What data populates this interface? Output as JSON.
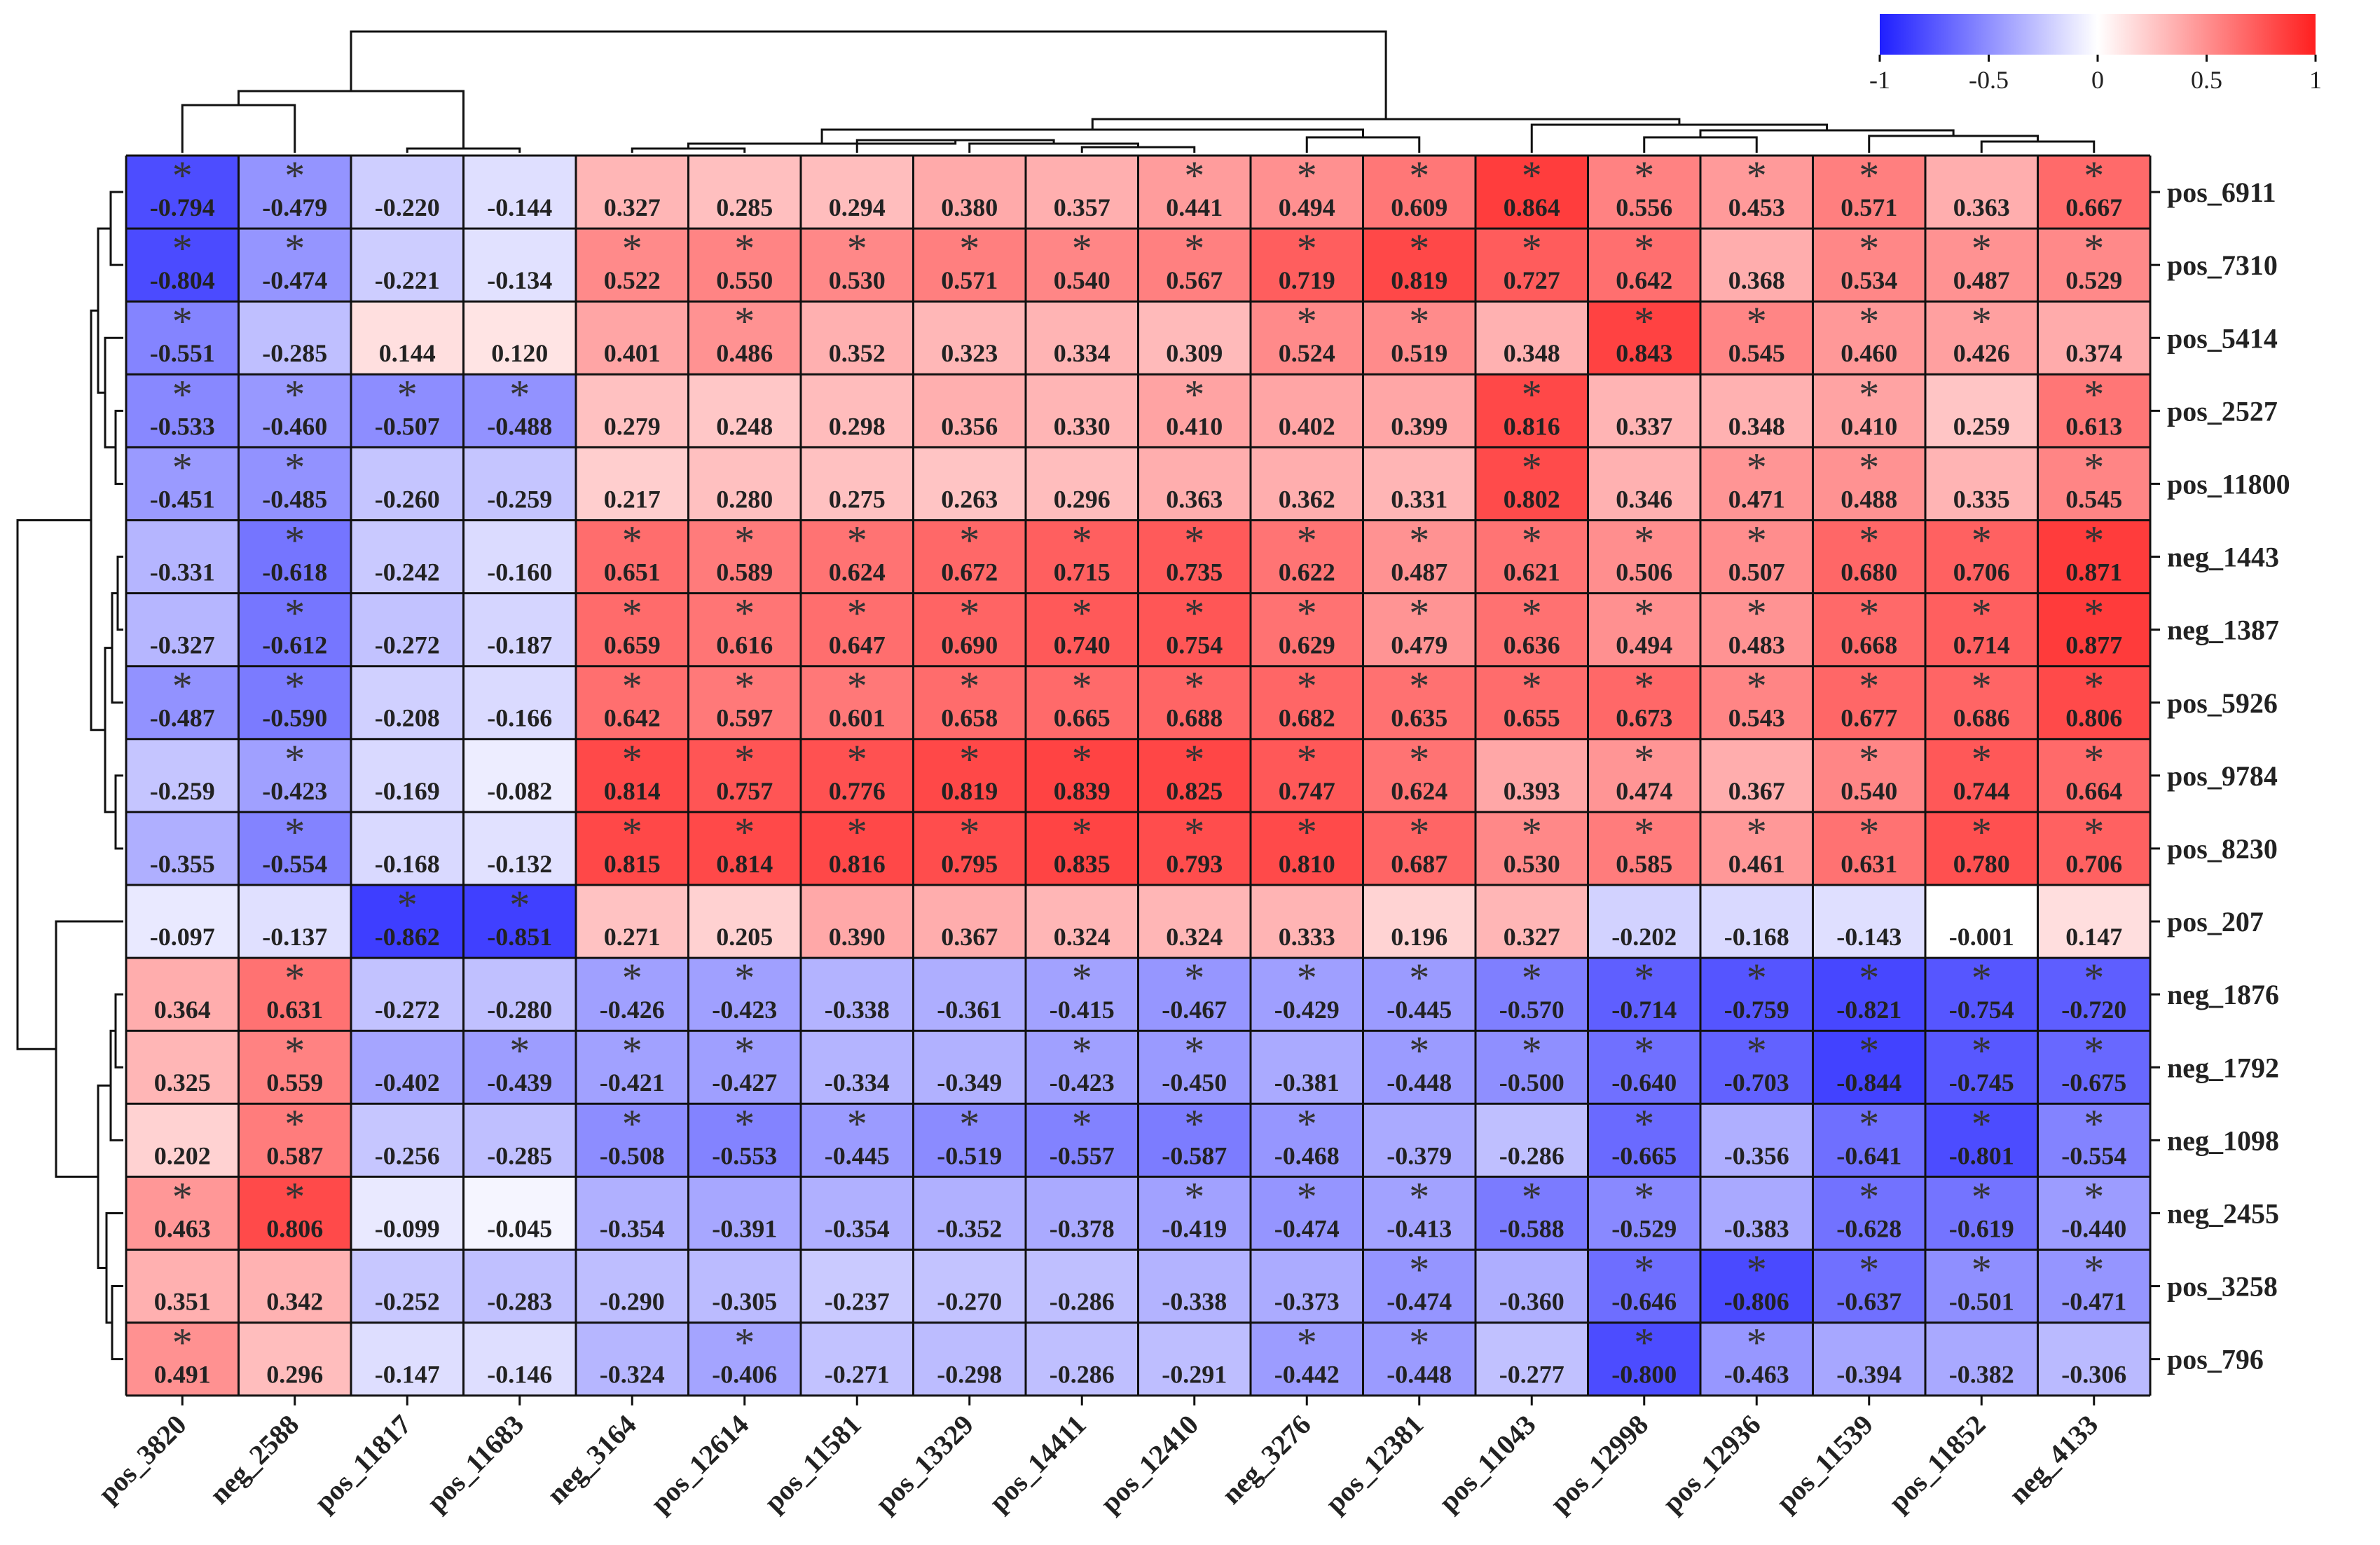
{
  "chart_data": {
    "type": "heatmap",
    "title": "",
    "columns": [
      "pos_3820",
      "neg_2588",
      "pos_11817",
      "pos_11683",
      "neg_3164",
      "pos_12614",
      "pos_11581",
      "pos_13329",
      "pos_14411",
      "pos_12410",
      "neg_3276",
      "pos_12381",
      "pos_11043",
      "pos_12998",
      "pos_12936",
      "pos_11539",
      "pos_11852",
      "neg_4133"
    ],
    "rows": [
      "pos_6911",
      "pos_7310",
      "pos_5414",
      "pos_2527",
      "pos_11800",
      "neg_1443",
      "neg_1387",
      "pos_5926",
      "pos_9784",
      "pos_8230",
      "pos_207",
      "neg_1876",
      "neg_1792",
      "neg_1098",
      "neg_2455",
      "pos_3258",
      "pos_796"
    ],
    "values": [
      [
        -0.794,
        -0.479,
        -0.22,
        -0.144,
        0.327,
        0.285,
        0.294,
        0.38,
        0.357,
        0.441,
        0.494,
        0.609,
        0.864,
        0.556,
        0.453,
        0.571,
        0.363,
        0.667
      ],
      [
        -0.804,
        -0.474,
        -0.221,
        -0.134,
        0.522,
        0.55,
        0.53,
        0.571,
        0.54,
        0.567,
        0.719,
        0.819,
        0.727,
        0.642,
        0.368,
        0.534,
        0.487,
        0.529
      ],
      [
        -0.551,
        -0.285,
        0.144,
        0.12,
        0.401,
        0.486,
        0.352,
        0.323,
        0.334,
        0.309,
        0.524,
        0.519,
        0.348,
        0.843,
        0.545,
        0.46,
        0.426,
        0.374
      ],
      [
        -0.533,
        -0.46,
        -0.507,
        -0.488,
        0.279,
        0.248,
        0.298,
        0.356,
        0.33,
        0.41,
        0.402,
        0.399,
        0.816,
        0.337,
        0.348,
        0.41,
        0.259,
        0.613
      ],
      [
        -0.451,
        -0.485,
        -0.26,
        -0.259,
        0.217,
        0.28,
        0.275,
        0.263,
        0.296,
        0.363,
        0.362,
        0.331,
        0.802,
        0.346,
        0.471,
        0.488,
        0.335,
        0.545
      ],
      [
        -0.331,
        -0.618,
        -0.242,
        -0.16,
        0.651,
        0.589,
        0.624,
        0.672,
        0.715,
        0.735,
        0.622,
        0.487,
        0.621,
        0.506,
        0.507,
        0.68,
        0.706,
        0.871
      ],
      [
        -0.327,
        -0.612,
        -0.272,
        -0.187,
        0.659,
        0.616,
        0.647,
        0.69,
        0.74,
        0.754,
        0.629,
        0.479,
        0.636,
        0.494,
        0.483,
        0.668,
        0.714,
        0.877
      ],
      [
        -0.487,
        -0.59,
        -0.208,
        -0.166,
        0.642,
        0.597,
        0.601,
        0.658,
        0.665,
        0.688,
        0.682,
        0.635,
        0.655,
        0.673,
        0.543,
        0.677,
        0.686,
        0.806
      ],
      [
        -0.259,
        -0.423,
        -0.169,
        -0.082,
        0.814,
        0.757,
        0.776,
        0.819,
        0.839,
        0.825,
        0.747,
        0.624,
        0.393,
        0.474,
        0.367,
        0.54,
        0.744,
        0.664
      ],
      [
        -0.355,
        -0.554,
        -0.168,
        -0.132,
        0.815,
        0.814,
        0.816,
        0.795,
        0.835,
        0.793,
        0.81,
        0.687,
        0.53,
        0.585,
        0.461,
        0.631,
        0.78,
        0.706
      ],
      [
        -0.097,
        -0.137,
        -0.862,
        -0.851,
        0.271,
        0.205,
        0.39,
        0.367,
        0.324,
        0.324,
        0.333,
        0.196,
        0.327,
        -0.202,
        -0.168,
        -0.143,
        -0.001,
        0.147
      ],
      [
        0.364,
        0.631,
        -0.272,
        -0.28,
        -0.426,
        -0.423,
        -0.338,
        -0.361,
        -0.415,
        -0.467,
        -0.429,
        -0.445,
        -0.57,
        -0.714,
        -0.759,
        -0.821,
        -0.754,
        -0.72
      ],
      [
        0.325,
        0.559,
        -0.402,
        -0.439,
        -0.421,
        -0.427,
        -0.334,
        -0.349,
        -0.423,
        -0.45,
        -0.381,
        -0.448,
        -0.5,
        -0.64,
        -0.703,
        -0.844,
        -0.745,
        -0.675
      ],
      [
        0.202,
        0.587,
        -0.256,
        -0.285,
        -0.508,
        -0.553,
        -0.445,
        -0.519,
        -0.557,
        -0.587,
        -0.468,
        -0.379,
        -0.286,
        -0.665,
        -0.356,
        -0.641,
        -0.801,
        -0.554
      ],
      [
        0.463,
        0.806,
        -0.099,
        -0.045,
        -0.354,
        -0.391,
        -0.354,
        -0.352,
        -0.378,
        -0.419,
        -0.474,
        -0.413,
        -0.588,
        -0.529,
        -0.383,
        -0.628,
        -0.619,
        -0.44
      ],
      [
        0.351,
        0.342,
        -0.252,
        -0.283,
        -0.29,
        -0.305,
        -0.237,
        -0.27,
        -0.286,
        -0.338,
        -0.373,
        -0.474,
        -0.36,
        -0.646,
        -0.806,
        -0.637,
        -0.501,
        -0.471
      ],
      [
        0.491,
        0.296,
        -0.147,
        -0.146,
        -0.324,
        -0.406,
        -0.271,
        -0.298,
        -0.286,
        -0.291,
        -0.442,
        -0.448,
        -0.277,
        -0.8,
        -0.463,
        -0.394,
        -0.382,
        -0.306
      ]
    ],
    "significance": [
      [
        1,
        1,
        0,
        0,
        0,
        0,
        0,
        0,
        0,
        1,
        1,
        1,
        1,
        1,
        1,
        1,
        0,
        1
      ],
      [
        1,
        1,
        0,
        0,
        1,
        1,
        1,
        1,
        1,
        1,
        1,
        1,
        1,
        1,
        0,
        1,
        1,
        1
      ],
      [
        1,
        0,
        0,
        0,
        0,
        1,
        0,
        0,
        0,
        0,
        1,
        1,
        0,
        1,
        1,
        1,
        1,
        0
      ],
      [
        1,
        1,
        1,
        1,
        0,
        0,
        0,
        0,
        0,
        1,
        0,
        0,
        1,
        0,
        0,
        1,
        0,
        1
      ],
      [
        1,
        1,
        0,
        0,
        0,
        0,
        0,
        0,
        0,
        0,
        0,
        0,
        1,
        0,
        1,
        1,
        0,
        1
      ],
      [
        0,
        1,
        0,
        0,
        1,
        1,
        1,
        1,
        1,
        1,
        1,
        1,
        1,
        1,
        1,
        1,
        1,
        1
      ],
      [
        0,
        1,
        0,
        0,
        1,
        1,
        1,
        1,
        1,
        1,
        1,
        1,
        1,
        1,
        1,
        1,
        1,
        1
      ],
      [
        1,
        1,
        0,
        0,
        1,
        1,
        1,
        1,
        1,
        1,
        1,
        1,
        1,
        1,
        1,
        1,
        1,
        1
      ],
      [
        0,
        1,
        0,
        0,
        1,
        1,
        1,
        1,
        1,
        1,
        1,
        1,
        0,
        1,
        0,
        1,
        1,
        1
      ],
      [
        0,
        1,
        0,
        0,
        1,
        1,
        1,
        1,
        1,
        1,
        1,
        1,
        1,
        1,
        1,
        1,
        1,
        1
      ],
      [
        0,
        0,
        1,
        1,
        0,
        0,
        0,
        0,
        0,
        0,
        0,
        0,
        0,
        0,
        0,
        0,
        0,
        0
      ],
      [
        0,
        1,
        0,
        0,
        1,
        1,
        0,
        0,
        1,
        1,
        1,
        1,
        1,
        1,
        1,
        1,
        1,
        1
      ],
      [
        0,
        1,
        0,
        1,
        1,
        1,
        0,
        0,
        1,
        1,
        0,
        1,
        1,
        1,
        1,
        1,
        1,
        1
      ],
      [
        0,
        1,
        0,
        0,
        1,
        1,
        1,
        1,
        1,
        1,
        1,
        0,
        0,
        1,
        0,
        1,
        1,
        1
      ],
      [
        1,
        1,
        0,
        0,
        0,
        0,
        0,
        0,
        0,
        1,
        1,
        1,
        1,
        1,
        0,
        1,
        1,
        1
      ],
      [
        0,
        0,
        0,
        0,
        0,
        0,
        0,
        0,
        0,
        0,
        0,
        1,
        0,
        1,
        1,
        1,
        1,
        1
      ],
      [
        1,
        0,
        0,
        0,
        0,
        1,
        0,
        0,
        0,
        0,
        1,
        1,
        0,
        1,
        1,
        0,
        0,
        0
      ]
    ],
    "significance_marker": "*",
    "colorscale": {
      "min": -1,
      "max": 1,
      "low_color": "#1f1fff",
      "mid_color": "#ffffff",
      "high_color": "#ff1f1f",
      "ticks": [
        -1,
        -0.5,
        0,
        0.5,
        1
      ],
      "tick_labels": [
        "-1",
        "-0.5",
        "0",
        "0.5",
        "1"
      ]
    },
    "legend_position": "top-right",
    "dendrograms": [
      "top",
      "left"
    ]
  }
}
